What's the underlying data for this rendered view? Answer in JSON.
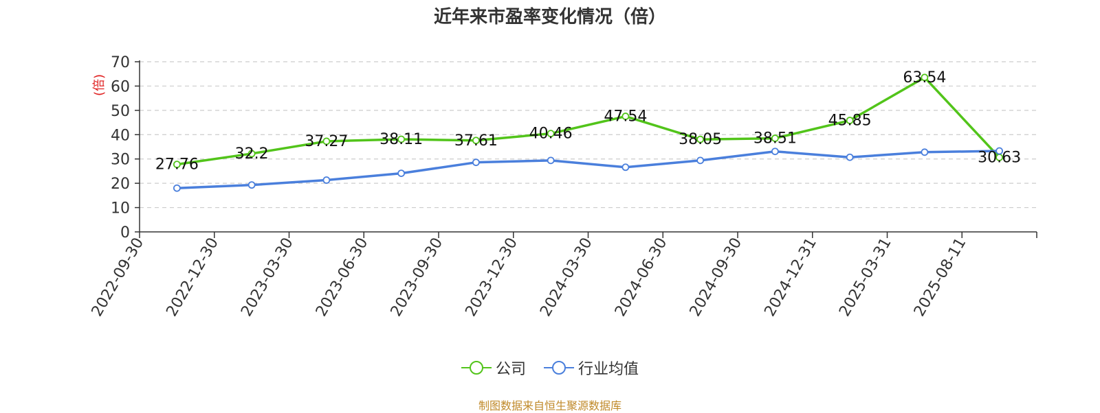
{
  "chart_data": {
    "type": "line",
    "title": "近年来市盈率变化情况（倍）",
    "ylabel": "(倍)",
    "xlabel": "",
    "ylim": [
      0,
      70
    ],
    "yticks": [
      0,
      10,
      20,
      30,
      40,
      50,
      60,
      70
    ],
    "grid": true,
    "legend_position": "bottom",
    "categories": [
      "2022-09-30",
      "2022-12-30",
      "2023-03-30",
      "2023-06-30",
      "2023-09-30",
      "2023-12-30",
      "2024-03-30",
      "2024-06-30",
      "2024-09-30",
      "2024-12-31",
      "2025-03-31",
      "2025-08-11"
    ],
    "series": [
      {
        "name": "公司",
        "color": "#52c41a",
        "values": [
          27.76,
          32.2,
          37.27,
          38.11,
          37.61,
          40.46,
          47.54,
          38.05,
          38.51,
          45.85,
          63.54,
          30.63
        ],
        "data_labels": [
          "27.76",
          "32.2",
          "37.27",
          "38.11",
          "37.61",
          "40.46",
          "47.54",
          "38.05",
          "38.51",
          "45.85",
          "63.54",
          "30.63"
        ]
      },
      {
        "name": "行业均值",
        "color": "#4a7fdc",
        "values": [
          18.0,
          19.3,
          21.3,
          24.1,
          28.6,
          29.4,
          26.6,
          29.4,
          33.1,
          30.7,
          32.8,
          33.3
        ]
      }
    ],
    "source_note": "制图数据来自恒生聚源数据库"
  }
}
